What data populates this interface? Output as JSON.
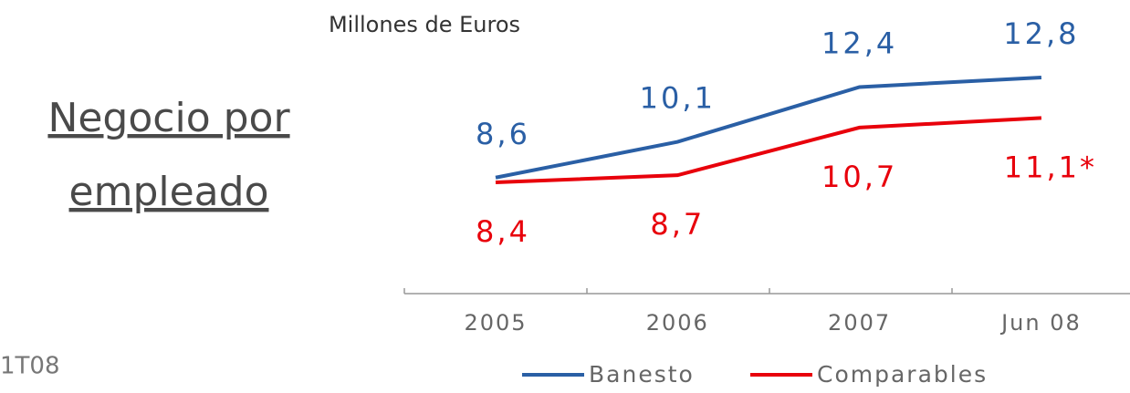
{
  "chart_data": {
    "type": "line",
    "title": [
      "Negocio por",
      "empleado"
    ],
    "subtitle": "Millones de Euros",
    "footer": "1T08",
    "categories": [
      "2005",
      "2006",
      "2007",
      "Jun 08"
    ],
    "series": [
      {
        "name": "Banesto",
        "color": "#2a5fa5",
        "values": [
          8.6,
          10.1,
          12.4,
          12.8
        ],
        "value_labels": [
          "8,6",
          "10,1",
          "12,4",
          "12,8"
        ]
      },
      {
        "name": "Comparables",
        "color": "#e8000b",
        "values": [
          8.4,
          8.7,
          10.7,
          11.1
        ],
        "value_labels": [
          "8,4",
          "8,7",
          "10,7",
          "11,1*"
        ]
      }
    ],
    "legend": "bottom"
  }
}
